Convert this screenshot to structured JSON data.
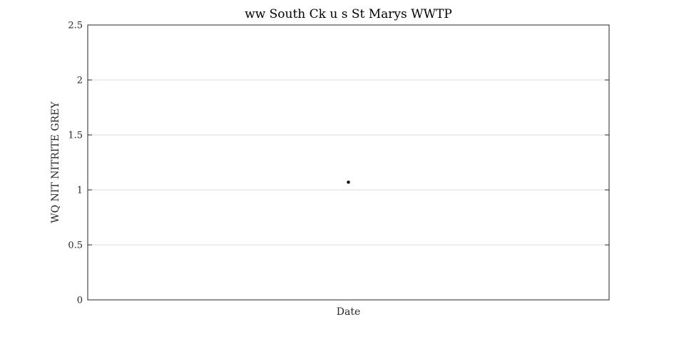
{
  "chart_data": {
    "type": "scatter",
    "title": "ww South Ck u s St Marys WWTP",
    "xlabel": "Date",
    "ylabel": "WQ NIT NITRITE GREY",
    "ylim": [
      0,
      2.5
    ],
    "y_ticks": [
      0,
      0.5,
      1,
      1.5,
      2,
      2.5
    ],
    "y_tick_labels": [
      "0",
      "0.5",
      "1",
      "1.5",
      "2",
      "2.5"
    ],
    "grid": true,
    "series": [
      {
        "points": [
          {
            "x": 0.5,
            "y": 1.07
          }
        ],
        "color": "#000000"
      }
    ]
  }
}
